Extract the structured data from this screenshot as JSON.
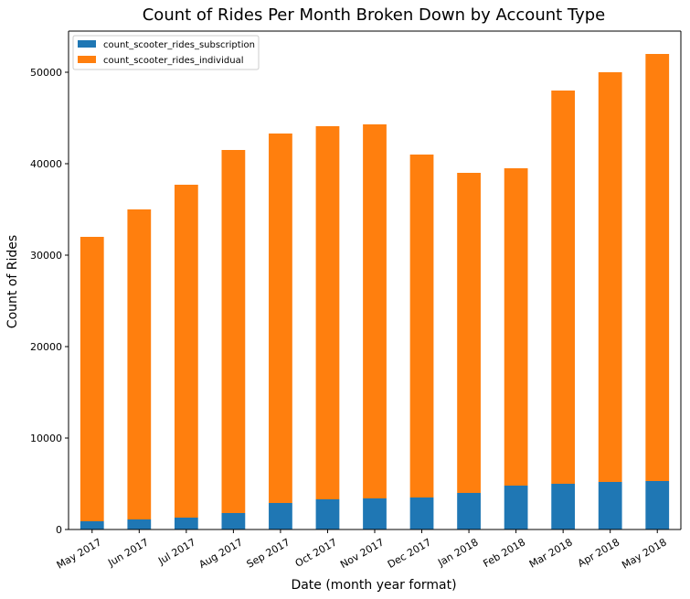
{
  "colors": {
    "subscription": "#1f77b4",
    "individual": "#ff7f0e",
    "axis": "#000000",
    "legend_border": "#cccccc"
  },
  "chart_data": {
    "type": "bar",
    "stacked": true,
    "title": "Count of Rides Per Month Broken Down by Account Type",
    "xlabel": "Date (month year format)",
    "ylabel": "Count of Rides",
    "categories": [
      "May 2017",
      "Jun 2017",
      "Jul 2017",
      "Aug 2017",
      "Sep 2017",
      "Oct 2017",
      "Nov 2017",
      "Dec 2017",
      "Jan 2018",
      "Feb 2018",
      "Mar 2018",
      "Apr 2018",
      "May 2018"
    ],
    "series": [
      {
        "name": "count_scooter_rides_subscription",
        "color_key": "subscription",
        "values": [
          900,
          1100,
          1300,
          1800,
          2900,
          3300,
          3400,
          3500,
          4000,
          4800,
          5000,
          5200,
          5300
        ]
      },
      {
        "name": "count_scooter_rides_individual",
        "color_key": "individual",
        "values": [
          31100,
          33900,
          36400,
          39700,
          40400,
          40800,
          40900,
          37500,
          35000,
          34700,
          43000,
          44800,
          46700
        ]
      }
    ],
    "ylim": [
      0,
      54500
    ],
    "yticks": [
      0,
      10000,
      20000,
      30000,
      40000,
      50000
    ],
    "ytick_labels": [
      "0",
      "10000",
      "20000",
      "30000",
      "40000",
      "50000"
    ],
    "grid": false,
    "legend_position": "top-left"
  }
}
